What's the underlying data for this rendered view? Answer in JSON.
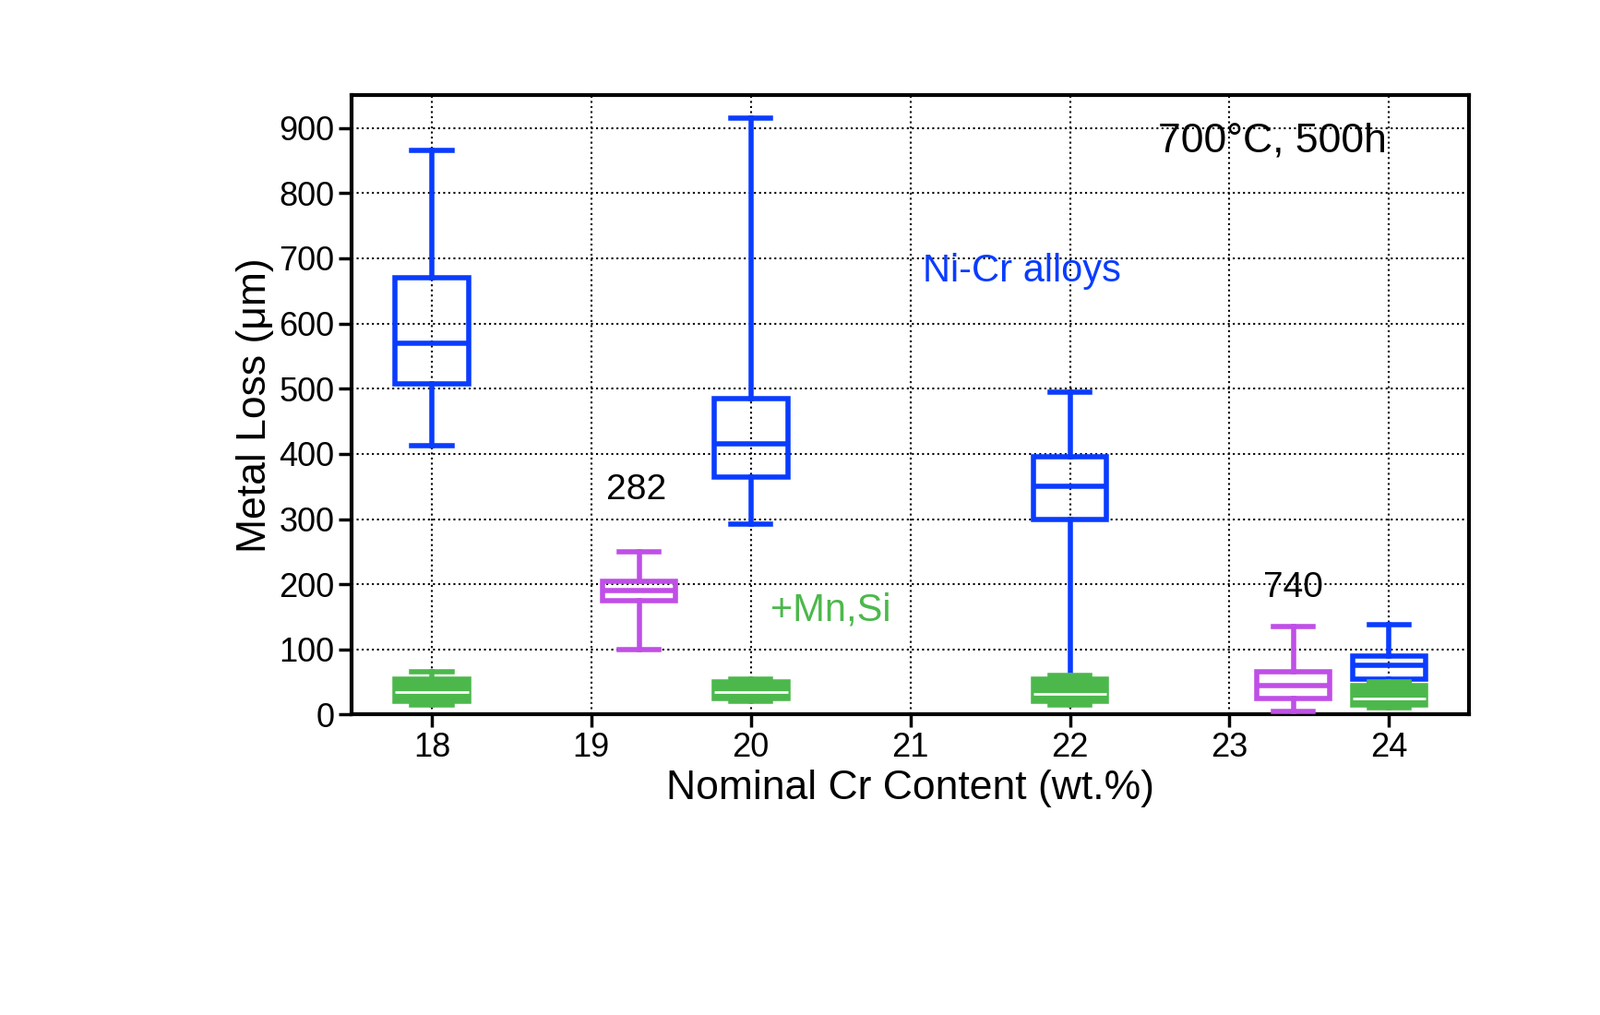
{
  "chart_data": {
    "type": "box",
    "x_label": "Nominal Cr Content (wt.%)",
    "y_label": "Metal Loss (μm)",
    "xlim": [
      17.5,
      24.5
    ],
    "xticks": [
      18,
      19,
      20,
      21,
      22,
      23,
      24
    ],
    "ylim": [
      0,
      950
    ],
    "yticks": [
      0,
      100,
      200,
      300,
      400,
      500,
      600,
      700,
      800,
      900
    ],
    "grid": true,
    "annotations": [
      {
        "text": "700°C, 500h",
        "x": 22.55,
        "y": 880
      }
    ],
    "series": [
      {
        "name": "Ni-Cr alloys",
        "color": "#0a3cff",
        "label_x": 21.7,
        "label_y": 680,
        "boxes": [
          {
            "x": 18,
            "whislo": 412,
            "q1": 508,
            "med": 570,
            "q3": 670,
            "whishi": 866
          },
          {
            "x": 20,
            "whislo": 292,
            "q1": 365,
            "med": 415,
            "q3": 485,
            "whishi": 915
          },
          {
            "x": 22,
            "whislo": 45,
            "q1": 300,
            "med": 350,
            "q3": 395,
            "whishi": 495
          },
          {
            "x": 24,
            "whislo": 50,
            "q1": 55,
            "med": 75,
            "q3": 90,
            "whishi": 138
          }
        ]
      },
      {
        "name": "+Mn,Si",
        "color": "#4cb84c",
        "label_x": 20.5,
        "label_y": 160,
        "boxes": [
          {
            "x": 18,
            "whislo": 15,
            "q1": 20,
            "med": 35,
            "q3": 55,
            "whishi": 65
          },
          {
            "x": 20,
            "whislo": 20,
            "q1": 25,
            "med": 35,
            "q3": 50,
            "whishi": 55
          },
          {
            "x": 22,
            "whislo": 15,
            "q1": 20,
            "med": 32,
            "q3": 55,
            "whishi": 60
          },
          {
            "x": 24,
            "whislo": 10,
            "q1": 15,
            "med": 25,
            "q3": 45,
            "whishi": 50
          }
        ]
      },
      {
        "name": "282",
        "color": "#bf4fe6",
        "label_x": 19.28,
        "label_y": 345,
        "boxes": [
          {
            "x": 19.3,
            "whislo": 100,
            "q1": 175,
            "med": 190,
            "q3": 205,
            "whishi": 250
          }
        ]
      },
      {
        "name": "740",
        "color": "#bf4fe6",
        "label_x": 23.4,
        "label_y": 195,
        "boxes": [
          {
            "x": 23.4,
            "whislo": 5,
            "q1": 25,
            "med": 45,
            "q3": 65,
            "whishi": 135
          }
        ]
      }
    ]
  }
}
